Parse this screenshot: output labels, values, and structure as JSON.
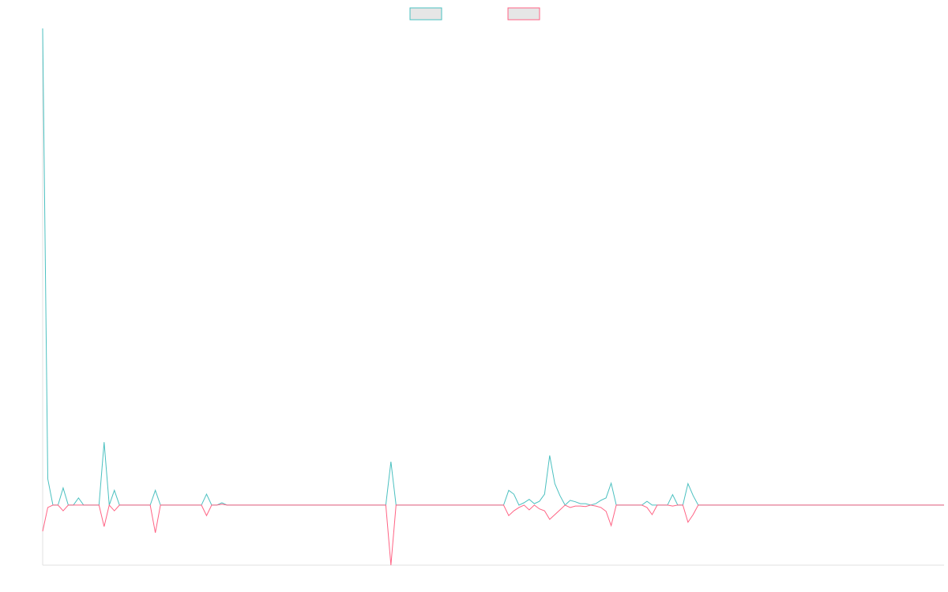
{
  "chart_data": {
    "type": "line",
    "categories": [
      null,
      null,
      null,
      null,
      null,
      null,
      null,
      null,
      null,
      null,
      null,
      null,
      null,
      null,
      null,
      null,
      null,
      null,
      null,
      null,
      null,
      null,
      null,
      null,
      null,
      null,
      null,
      null,
      null,
      null,
      null,
      null,
      null,
      null,
      null,
      null,
      null,
      null,
      null,
      null,
      null,
      null,
      null,
      null,
      null,
      null,
      null,
      null,
      null,
      null,
      null,
      null,
      null,
      null,
      null,
      null,
      null,
      null,
      null,
      null,
      null,
      null,
      null,
      null,
      null,
      null,
      null,
      null,
      null,
      null,
      null,
      null,
      null,
      null,
      null,
      null,
      null,
      null,
      null,
      null,
      null,
      null,
      null,
      null,
      null,
      null,
      null,
      null,
      null,
      null,
      null,
      null,
      null,
      null,
      null,
      null,
      null,
      null,
      null,
      null,
      null,
      null,
      null,
      null,
      null,
      null,
      null,
      null,
      null,
      null,
      null,
      null,
      null,
      null,
      null,
      null,
      null,
      null,
      null,
      null,
      null,
      null,
      null,
      null,
      null,
      null,
      null,
      null,
      null,
      null,
      null,
      null,
      null,
      null,
      null,
      null,
      null,
      null,
      null,
      null,
      null,
      null,
      null,
      null,
      null,
      null,
      null,
      null,
      null,
      null,
      null,
      null,
      null,
      null,
      null,
      null,
      null,
      null,
      null,
      null,
      null,
      null,
      null,
      null,
      null,
      null,
      null,
      null,
      null,
      null,
      null,
      null,
      null,
      null,
      null,
      null,
      null
    ],
    "series": [
      {
        "color": "#4bc0c0",
        "values": [
          100,
          5.5,
          0,
          0,
          3.6,
          0,
          0,
          1.5,
          0,
          0,
          0,
          0,
          13.2,
          0,
          3.1,
          0,
          0,
          0,
          0,
          0,
          0,
          0,
          3.1,
          0,
          0,
          0,
          0,
          0,
          0,
          0,
          0,
          0,
          2.3,
          0,
          0,
          0.5,
          0,
          0,
          0,
          0,
          0,
          0,
          0,
          0,
          0,
          0,
          0,
          0,
          0,
          0,
          0,
          0,
          0,
          0,
          0,
          0,
          0,
          0,
          0,
          0,
          0,
          0,
          0,
          0,
          0,
          0,
          0,
          0,
          9.1,
          0,
          0,
          0,
          0,
          0,
          0,
          0,
          0,
          0,
          0,
          0,
          0,
          0,
          0,
          0,
          0,
          0,
          0,
          0,
          0,
          0,
          0,
          3.1,
          2.3,
          0,
          0.5,
          1.2,
          0.3,
          0.8,
          2.3,
          10.4,
          4.5,
          2,
          0,
          1,
          0.7,
          0.3,
          0.3,
          0,
          0.3,
          1,
          1.5,
          4.6,
          0,
          0,
          0,
          0,
          0,
          0,
          0.8,
          0,
          0,
          0,
          0,
          2.2,
          0,
          0,
          4.5,
          2,
          0,
          0,
          0,
          0,
          0,
          0,
          0,
          0,
          0,
          0,
          0,
          0,
          0,
          0,
          0,
          0,
          0,
          0,
          0,
          0,
          0,
          0,
          0,
          0,
          0,
          0,
          0,
          0,
          0,
          0,
          0,
          0,
          0,
          0,
          0,
          0,
          0,
          0,
          0,
          0,
          0,
          0,
          0,
          0,
          0,
          0,
          0,
          0,
          0
        ]
      },
      {
        "color": "#ff6384",
        "values": [
          -5.5,
          -0.5,
          0,
          0,
          -1.2,
          0,
          0,
          0,
          0,
          0,
          0,
          0,
          -4.5,
          0,
          -1.2,
          0,
          0,
          0,
          0,
          0,
          0,
          0,
          -5.8,
          0,
          0,
          0,
          0,
          0,
          0,
          0,
          0,
          0,
          -2.2,
          0,
          0,
          0.2,
          0,
          0,
          0,
          0,
          0,
          0,
          0,
          0,
          0,
          0,
          0,
          0,
          0,
          0,
          0,
          0,
          0,
          0,
          0,
          0,
          0,
          0,
          0,
          0,
          0,
          0,
          0,
          0,
          0,
          0,
          0,
          0,
          -12.6,
          0,
          0,
          0,
          0,
          0,
          0,
          0,
          0,
          0,
          0,
          0,
          0,
          0,
          0,
          0,
          0,
          0,
          0,
          0,
          0,
          0,
          0,
          -2.2,
          -1.2,
          -0.5,
          0,
          -1,
          0,
          -0.8,
          -1.2,
          -3,
          -2,
          -1,
          0,
          -0.5,
          -0.2,
          -0.2,
          -0.3,
          0,
          -0.2,
          -0.5,
          -1.3,
          -4.3,
          0,
          0,
          0,
          0,
          0,
          0,
          -0.5,
          -2,
          0,
          0,
          0,
          -0.2,
          0,
          0,
          -3.6,
          -2,
          0,
          0,
          0,
          0,
          0,
          0,
          0,
          0,
          0,
          0,
          0,
          0,
          0,
          0,
          0,
          0,
          0,
          0,
          0,
          0,
          0,
          0,
          0,
          0,
          0,
          0,
          0,
          0,
          0,
          0,
          0,
          0,
          0,
          0,
          0,
          0,
          0,
          0,
          0,
          0,
          0,
          0,
          0,
          0,
          0,
          0,
          0,
          0,
          0
        ]
      }
    ],
    "ylim": [
      -12.6,
      100
    ]
  }
}
